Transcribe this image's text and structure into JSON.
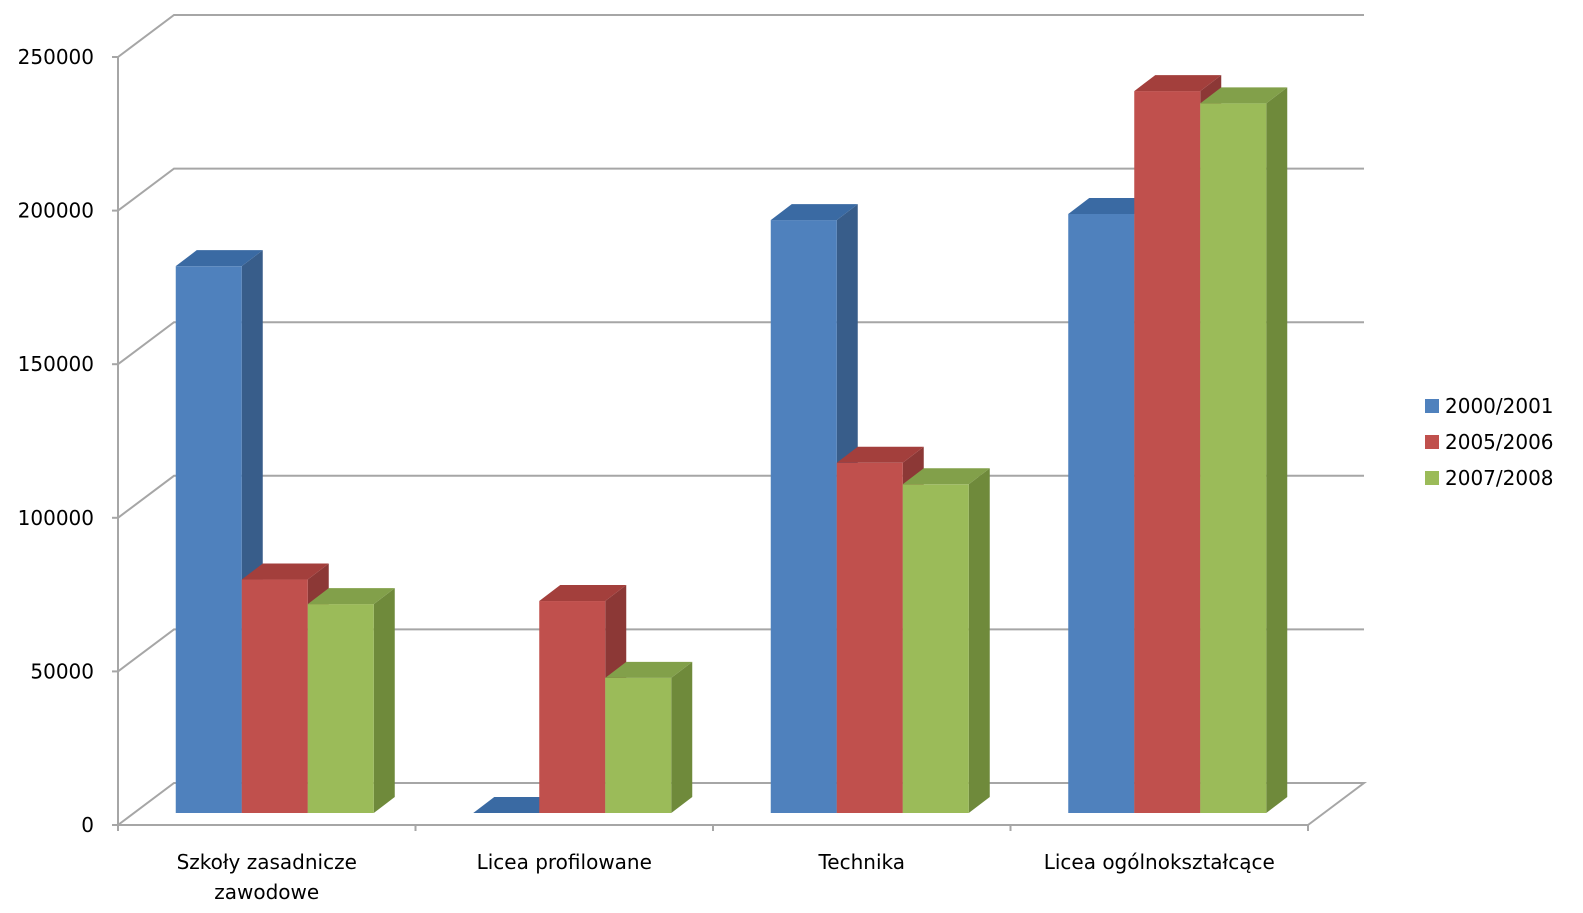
{
  "chart_data": {
    "type": "bar",
    "title": "",
    "xlabel": "",
    "ylabel": "",
    "categories": [
      "Szkoły zasadnicze zawodowe",
      "Licea profilowane",
      "Technika",
      "Licea ogólnokształcące"
    ],
    "category_lines": [
      [
        "Szkoły zasadnicze",
        "zawodowe"
      ],
      [
        "Licea profilowane"
      ],
      [
        "Technika"
      ],
      [
        "Licea ogólnokształcące"
      ]
    ],
    "series": [
      {
        "name": "2000/2001",
        "values": [
          178000,
          0,
          193000,
          195000
        ],
        "color": "#4F81BD",
        "side": "#385D8A",
        "top": "#3A6AA3"
      },
      {
        "name": "2005/2006",
        "values": [
          76000,
          69000,
          114000,
          235000
        ],
        "color": "#C0504D",
        "side": "#8C3836",
        "top": "#A33F3C"
      },
      {
        "name": "2007/2008",
        "values": [
          68000,
          44000,
          107000,
          231000
        ],
        "color": "#9BBB59",
        "side": "#6F8A3B",
        "top": "#82A04A"
      }
    ],
    "yticks": [
      0,
      50000,
      100000,
      150000,
      200000,
      250000
    ],
    "ylim": [
      0,
      250000
    ],
    "grid": true,
    "legend": "right",
    "three_d": true
  }
}
